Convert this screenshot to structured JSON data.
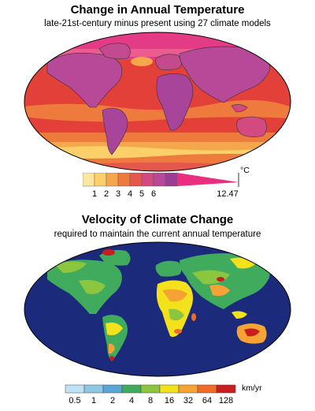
{
  "panels": [
    {
      "title": "Change in Annual Temperature",
      "subtitle": "late-21st-century minus present using 27 climate models",
      "colorbar": {
        "colors": [
          "#fde6a0",
          "#fbcf6a",
          "#f6a64c",
          "#ef7a3d",
          "#e4574c",
          "#d24a80",
          "#b84898",
          "#9c3d94"
        ],
        "ticks": [
          "1",
          "2",
          "3",
          "4",
          "5",
          "6"
        ],
        "max_label": "12.47",
        "max_color": "#ea2f7e",
        "unit": "°C"
      }
    },
    {
      "title": "Velocity of Climate Change",
      "subtitle": "required to maintain the current annual temperature",
      "colorbar": {
        "colors": [
          "#bfe3f2",
          "#8ec6e6",
          "#5aa6d6",
          "#41ab5d",
          "#8cc63f",
          "#f2e11b",
          "#f7a234",
          "#ef6b26",
          "#c81e1e"
        ],
        "ticks": [
          "0.5",
          "1",
          "2",
          "4",
          "8",
          "16",
          "32",
          "64",
          "128"
        ],
        "unit": "km/yr"
      }
    }
  ]
}
